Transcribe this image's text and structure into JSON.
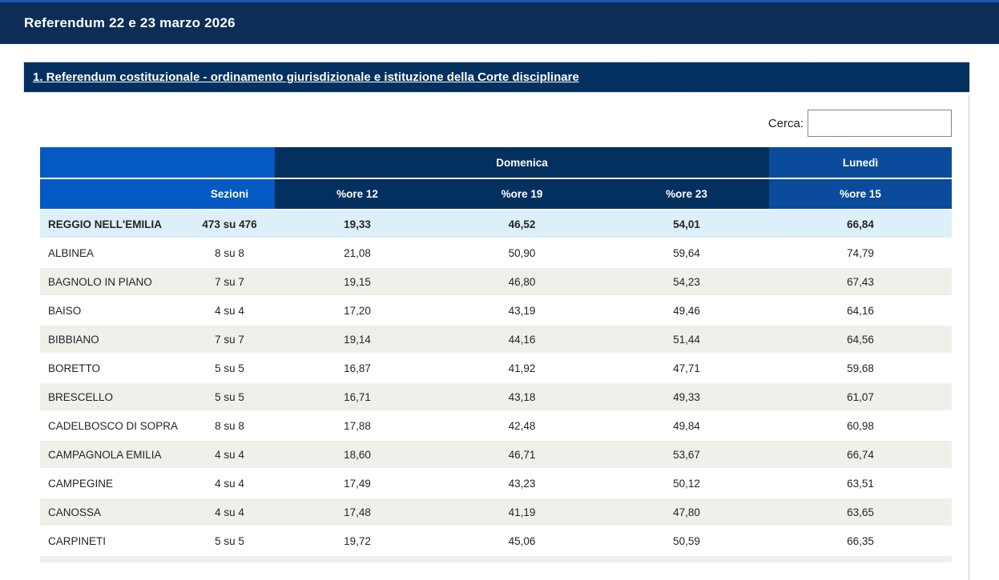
{
  "header": {
    "title": "Referendum 22 e 23 marzo 2026"
  },
  "section": {
    "title": "1. Referendum costituzionale - ordinamento giurisdizionale e istituzione della Corte disciplinare"
  },
  "search": {
    "label": "Cerca:",
    "value": ""
  },
  "table": {
    "group_headers": [
      {
        "label": ""
      },
      {
        "label": "Domenica"
      },
      {
        "label": "Lunedì"
      }
    ],
    "columns": [
      "",
      "Sezioni",
      "%ore 12",
      "%ore 19",
      "%ore 23",
      "%ore 15"
    ],
    "rows": [
      {
        "highlight": true,
        "cells": [
          "REGGIO NELL'EMILIA",
          "473 su 476",
          "19,33",
          "46,52",
          "54,01",
          "66,84"
        ]
      },
      {
        "highlight": false,
        "cells": [
          "ALBINEA",
          "8 su 8",
          "21,08",
          "50,90",
          "59,64",
          "74,79"
        ]
      },
      {
        "highlight": false,
        "cells": [
          "BAGNOLO IN PIANO",
          "7 su 7",
          "19,15",
          "46,80",
          "54,23",
          "67,43"
        ]
      },
      {
        "highlight": false,
        "cells": [
          "BAISO",
          "4 su 4",
          "17,20",
          "43,19",
          "49,46",
          "64,16"
        ]
      },
      {
        "highlight": false,
        "cells": [
          "BIBBIANO",
          "7 su 7",
          "19,14",
          "44,16",
          "51,44",
          "64,56"
        ]
      },
      {
        "highlight": false,
        "cells": [
          "BORETTO",
          "5 su 5",
          "16,87",
          "41,92",
          "47,71",
          "59,68"
        ]
      },
      {
        "highlight": false,
        "cells": [
          "BRESCELLO",
          "5 su 5",
          "16,71",
          "43,18",
          "49,33",
          "61,07"
        ]
      },
      {
        "highlight": false,
        "cells": [
          "CADELBOSCO DI SOPRA",
          "8 su 8",
          "17,88",
          "42,48",
          "49,84",
          "60,98"
        ]
      },
      {
        "highlight": false,
        "cells": [
          "CAMPAGNOLA EMILIA",
          "4 su 4",
          "18,60",
          "46,71",
          "53,67",
          "66,74"
        ]
      },
      {
        "highlight": false,
        "cells": [
          "CAMPEGINE",
          "4 su 4",
          "17,49",
          "43,23",
          "50,12",
          "63,51"
        ]
      },
      {
        "highlight": false,
        "cells": [
          "CANOSSA",
          "4 su 4",
          "17,48",
          "41,19",
          "47,80",
          "63,65"
        ]
      },
      {
        "highlight": false,
        "cells": [
          "CARPINETI",
          "5 su 5",
          "19,72",
          "45,06",
          "50,59",
          "66,35"
        ]
      }
    ]
  },
  "colors": {
    "topbar-bg": "#0c2d55",
    "topbar-accent": "#1a57ae",
    "section-bg": "#04305f",
    "group-blue": "#0559c3",
    "domenica-navy": "#04305f",
    "lunedi-blue": "#0b4b9b",
    "highlight-row": "#ddeff8",
    "stripe-gray": "#f0f0eb"
  }
}
